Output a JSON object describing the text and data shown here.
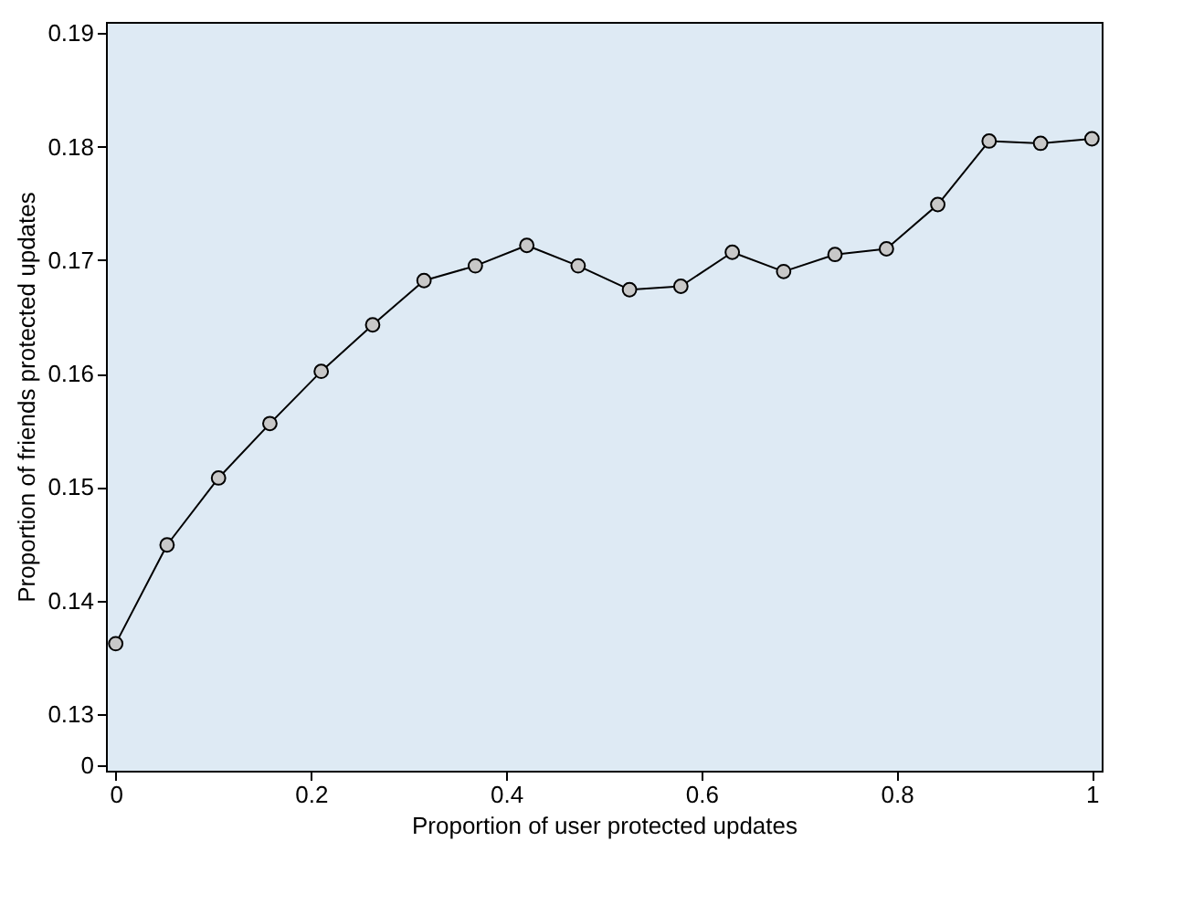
{
  "chart_data": {
    "type": "line",
    "xlabel": "Proportion of user protected updates",
    "ylabel": "Proportion of friends protected updates",
    "x": [
      0,
      0.0526,
      0.1053,
      0.1579,
      0.2105,
      0.2632,
      0.3158,
      0.3684,
      0.4211,
      0.4737,
      0.5263,
      0.5789,
      0.6316,
      0.6842,
      0.7368,
      0.7895,
      0.8421,
      0.8947,
      0.9474,
      1
    ],
    "series": [
      {
        "color": "#000000",
        "values": [
          0.1362,
          0.1449,
          0.1508,
          0.1556,
          0.1602,
          0.1643,
          0.1682,
          0.1695,
          0.1713,
          0.1695,
          0.1674,
          0.1677,
          0.1707,
          0.169,
          0.1705,
          0.171,
          0.1749,
          0.1805,
          0.1803,
          0.1807
        ]
      }
    ],
    "xlim": [
      -0.01,
      1.01
    ],
    "xticks": [
      {
        "value": 0,
        "label": "0"
      },
      0.2,
      0.4,
      0.6,
      0.8,
      {
        "value": 1,
        "label": "1"
      }
    ],
    "ylim": [
      0.125,
      0.191
    ],
    "yticks": [
      {
        "value": 0.1255,
        "label": "0"
      },
      0.13,
      0.14,
      0.15,
      0.16,
      0.17,
      0.18,
      0.19
    ],
    "marker": "circle",
    "line_style": "solid",
    "grid": false
  }
}
